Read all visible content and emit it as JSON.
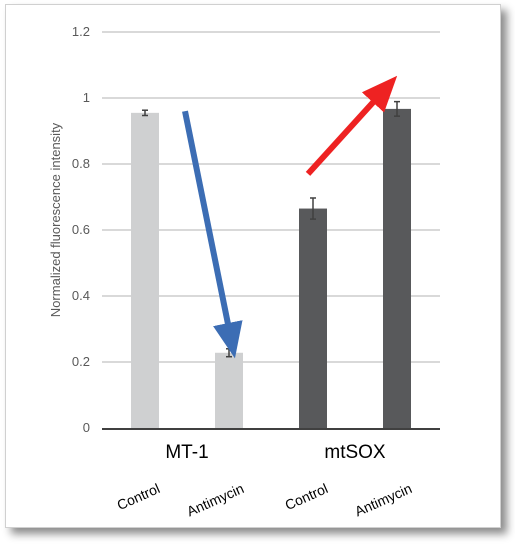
{
  "chart_data": {
    "type": "bar",
    "ylabel": "Normalized fluorescence intensity",
    "ylim": [
      0,
      1.2
    ],
    "yticks": [
      "0",
      "0.2",
      "0.4",
      "0.6",
      "0.8",
      "1",
      "1.2"
    ],
    "grid": true,
    "groups": [
      "MT-1",
      "mtSOX"
    ],
    "categories": [
      "Control",
      "Antimycin",
      "Control",
      "Antimycin"
    ],
    "values": [
      0.955,
      0.228,
      0.665,
      0.967
    ],
    "errors": [
      0.008,
      0.012,
      0.032,
      0.022
    ],
    "bar_colors": [
      "#cfd0d1",
      "#cfd0d1",
      "#58595b",
      "#58595b"
    ],
    "arrows": [
      {
        "from_category": 0,
        "to_category": 1,
        "from_value": 0.96,
        "to_value": 0.3,
        "color": "#3c6db4",
        "direction": "down"
      },
      {
        "from_category": 2,
        "to_category": 3,
        "from_value": 0.77,
        "to_value": 1.0,
        "color": "#ee2222",
        "direction": "up"
      }
    ]
  }
}
